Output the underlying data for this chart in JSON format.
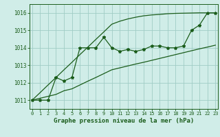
{
  "title": "Graphe pression niveau de la mer (hPa)",
  "bg_color": "#d0ede8",
  "grid_color": "#a0ccc5",
  "line_color": "#1a5c1a",
  "x_values": [
    0,
    1,
    2,
    3,
    4,
    5,
    6,
    7,
    8,
    9,
    10,
    11,
    12,
    13,
    14,
    15,
    16,
    17,
    18,
    19,
    20,
    21,
    22,
    23
  ],
  "y_data": [
    1011,
    1011,
    1011,
    1012.3,
    1012.1,
    1012.3,
    1014.0,
    1014.0,
    1014.0,
    1014.6,
    1014.0,
    1013.8,
    1013.9,
    1013.8,
    1013.9,
    1014.1,
    1014.1,
    1014.0,
    1014.0,
    1014.1,
    1015.0,
    1015.3,
    1016.0,
    1016.0
  ],
  "y_reg_high": [
    1011.0,
    1011.43,
    1011.87,
    1012.3,
    1012.74,
    1013.17,
    1013.61,
    1014.04,
    1014.48,
    1014.91,
    1015.35,
    1015.52,
    1015.65,
    1015.75,
    1015.83,
    1015.88,
    1015.91,
    1015.95,
    1015.97,
    1015.98,
    1015.99,
    1016.0,
    1016.0,
    1016.0
  ],
  "y_reg_low": [
    1011.0,
    1011.11,
    1011.22,
    1011.33,
    1011.54,
    1011.65,
    1011.87,
    1012.09,
    1012.3,
    1012.52,
    1012.74,
    1012.85,
    1012.96,
    1013.07,
    1013.17,
    1013.28,
    1013.39,
    1013.5,
    1013.61,
    1013.72,
    1013.83,
    1013.94,
    1014.04,
    1014.15
  ],
  "ylim": [
    1010.5,
    1016.5
  ],
  "xlim": [
    -0.3,
    23.3
  ],
  "yticks": [
    1011,
    1012,
    1013,
    1014,
    1015,
    1016
  ],
  "xticks": [
    0,
    1,
    2,
    3,
    4,
    5,
    6,
    7,
    8,
    9,
    10,
    11,
    12,
    13,
    14,
    15,
    16,
    17,
    18,
    19,
    20,
    21,
    22,
    23
  ]
}
